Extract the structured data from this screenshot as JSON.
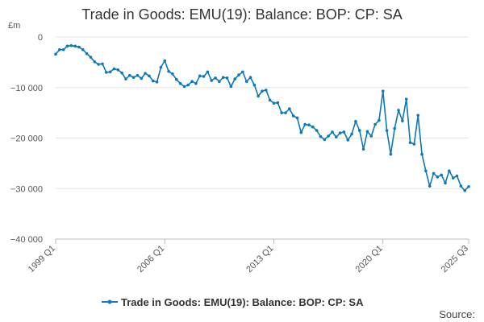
{
  "chart_data": {
    "type": "line",
    "title": "Trade in Goods: EMU(19): Balance: BOP: CP: SA",
    "unit_label": "£m",
    "xlabel": "",
    "ylabel": "",
    "ylim": [
      -40000,
      0
    ],
    "y_ticks": [
      0,
      -10000,
      -20000,
      -30000,
      -40000
    ],
    "y_tick_labels": [
      "0",
      "−10 000",
      "−20 000",
      "−30 000",
      "−40 000"
    ],
    "x_tick_labels": [
      "1999 Q1",
      "2006 Q1",
      "2013 Q1",
      "2020 Q1",
      "2025 Q3"
    ],
    "x_tick_index": [
      0,
      28,
      56,
      84,
      106
    ],
    "grid": true,
    "legend": "bottom-center",
    "source_label": "Source:",
    "colors": {
      "line": "#0e78b9",
      "grid": "#e6e6e6",
      "axis": "#bbbbbb"
    },
    "series": [
      {
        "name": "Trade in Goods: EMU(19): Balance: BOP: CP: SA",
        "x": [
          "1999 Q1",
          "1999 Q2",
          "1999 Q3",
          "1999 Q4",
          "2000 Q1",
          "2000 Q2",
          "2000 Q3",
          "2000 Q4",
          "2001 Q1",
          "2001 Q2",
          "2001 Q3",
          "2001 Q4",
          "2002 Q1",
          "2002 Q2",
          "2002 Q3",
          "2002 Q4",
          "2003 Q1",
          "2003 Q2",
          "2003 Q3",
          "2003 Q4",
          "2004 Q1",
          "2004 Q2",
          "2004 Q3",
          "2004 Q4",
          "2005 Q1",
          "2005 Q2",
          "2005 Q3",
          "2005 Q4",
          "2006 Q1",
          "2006 Q2",
          "2006 Q3",
          "2006 Q4",
          "2007 Q1",
          "2007 Q2",
          "2007 Q3",
          "2007 Q4",
          "2008 Q1",
          "2008 Q2",
          "2008 Q3",
          "2008 Q4",
          "2009 Q1",
          "2009 Q2",
          "2009 Q3",
          "2009 Q4",
          "2010 Q1",
          "2010 Q2",
          "2010 Q3",
          "2010 Q4",
          "2011 Q1",
          "2011 Q2",
          "2011 Q3",
          "2011 Q4",
          "2012 Q1",
          "2012 Q2",
          "2012 Q3",
          "2012 Q4",
          "2013 Q1",
          "2013 Q2",
          "2013 Q3",
          "2013 Q4",
          "2014 Q1",
          "2014 Q2",
          "2014 Q3",
          "2014 Q4",
          "2015 Q1",
          "2015 Q2",
          "2015 Q3",
          "2015 Q4",
          "2016 Q1",
          "2016 Q2",
          "2016 Q3",
          "2016 Q4",
          "2017 Q1",
          "2017 Q2",
          "2017 Q3",
          "2017 Q4",
          "2018 Q1",
          "2018 Q2",
          "2018 Q3",
          "2018 Q4",
          "2019 Q1",
          "2019 Q2",
          "2019 Q3",
          "2019 Q4",
          "2020 Q1",
          "2020 Q2",
          "2020 Q3",
          "2020 Q4",
          "2021 Q1",
          "2021 Q2",
          "2021 Q3",
          "2021 Q4",
          "2022 Q1",
          "2022 Q2",
          "2022 Q3",
          "2022 Q4",
          "2023 Q1",
          "2023 Q2",
          "2023 Q3",
          "2023 Q4",
          "2024 Q1",
          "2024 Q2",
          "2024 Q3",
          "2024 Q4",
          "2025 Q1",
          "2025 Q2",
          "2025 Q3"
        ],
        "values": [
          -3400,
          -2500,
          -2500,
          -1800,
          -1700,
          -1800,
          -2000,
          -2500,
          -3300,
          -4000,
          -4900,
          -5400,
          -5300,
          -7000,
          -6900,
          -6300,
          -6500,
          -7100,
          -8300,
          -7600,
          -8000,
          -7600,
          -8200,
          -7200,
          -7700,
          -8700,
          -8900,
          -6000,
          -4700,
          -6800,
          -7300,
          -8400,
          -9200,
          -9800,
          -9500,
          -8800,
          -9200,
          -7700,
          -7800,
          -6900,
          -8600,
          -8100,
          -8800,
          -8000,
          -8100,
          -9800,
          -8300,
          -7500,
          -6900,
          -8800,
          -8000,
          -9500,
          -11700,
          -10700,
          -10500,
          -12500,
          -13100,
          -13000,
          -15000,
          -15000,
          -14200,
          -15600,
          -16000,
          -18900,
          -17300,
          -17400,
          -17800,
          -18500,
          -19700,
          -20300,
          -19600,
          -18800,
          -19800,
          -19000,
          -18800,
          -20400,
          -19200,
          -16700,
          -18500,
          -22200,
          -18700,
          -19600,
          -17300,
          -16500,
          -10700,
          -18500,
          -23200,
          -18100,
          -14500,
          -16600,
          -12300,
          -20900,
          -21200,
          -15500,
          -23200,
          -26500,
          -29500,
          -27000,
          -27700,
          -27300,
          -28900,
          -26500,
          -27900,
          -27500,
          -29500,
          -30400,
          -29600
        ]
      }
    ]
  }
}
